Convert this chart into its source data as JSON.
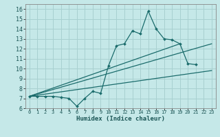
{
  "title": "",
  "xlabel": "Humidex (Indice chaleur)",
  "bg_color": "#c5e8e8",
  "grid_color": "#a8d0d0",
  "line_color": "#1a6b6b",
  "xlim": [
    -0.5,
    23.5
  ],
  "ylim": [
    6,
    16.5
  ],
  "xticks": [
    0,
    1,
    2,
    3,
    4,
    5,
    6,
    7,
    8,
    9,
    10,
    11,
    12,
    13,
    14,
    15,
    16,
    17,
    18,
    19,
    20,
    21,
    22,
    23
  ],
  "yticks": [
    6,
    7,
    8,
    9,
    10,
    11,
    12,
    13,
    14,
    15,
    16
  ],
  "series1": {
    "x": [
      0,
      1,
      2,
      3,
      4,
      5,
      6,
      7,
      8,
      9,
      10,
      11,
      12,
      13,
      14,
      15,
      16,
      17,
      18,
      19,
      20,
      21
    ],
    "y": [
      7.2,
      7.2,
      7.2,
      7.2,
      7.1,
      7.0,
      6.2,
      7.0,
      7.7,
      7.5,
      10.3,
      12.3,
      12.5,
      13.8,
      13.5,
      15.8,
      14.0,
      13.0,
      12.9,
      12.5,
      10.5,
      10.4
    ]
  },
  "series2": {
    "x": [
      0,
      23
    ],
    "y": [
      7.2,
      9.8
    ]
  },
  "series3": {
    "x": [
      0,
      23
    ],
    "y": [
      7.2,
      12.5
    ]
  },
  "series4": {
    "x": [
      0,
      19
    ],
    "y": [
      7.2,
      12.5
    ]
  }
}
